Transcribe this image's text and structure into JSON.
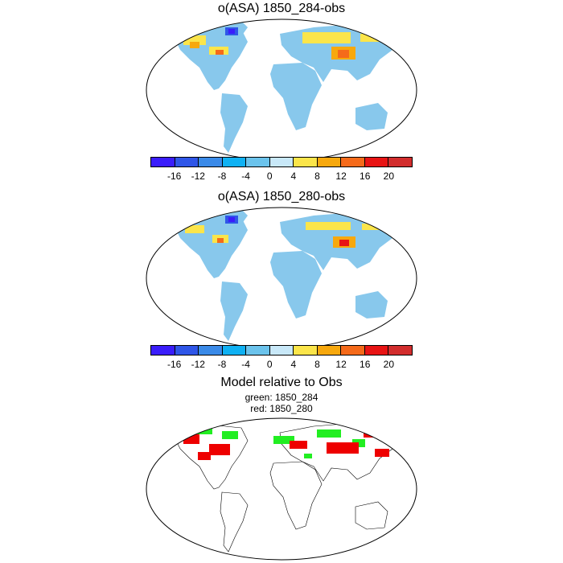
{
  "panels": [
    {
      "title": "o(ASA) 1850_284-obs"
    },
    {
      "title": "o(ASA) 1850_280-obs"
    }
  ],
  "colorbar": {
    "colors": [
      "#3a1dfb",
      "#2f56e8",
      "#3a8ae8",
      "#0fb1f3",
      "#6bc3ec",
      "#c8e8f8",
      "#fbe54a",
      "#f7a80d",
      "#f56a1a",
      "#e81414",
      "#d22d2d"
    ],
    "ticks": [
      "-16",
      "-12",
      "-8",
      "-4",
      "0",
      "4",
      "8",
      "12",
      "16",
      "20"
    ]
  },
  "comparison": {
    "title": "Model relative to Obs",
    "line1": "green: 1850_284",
    "line2": "red: 1850_280",
    "colors": {
      "green": "#22ee22",
      "red": "#ee0000"
    }
  }
}
